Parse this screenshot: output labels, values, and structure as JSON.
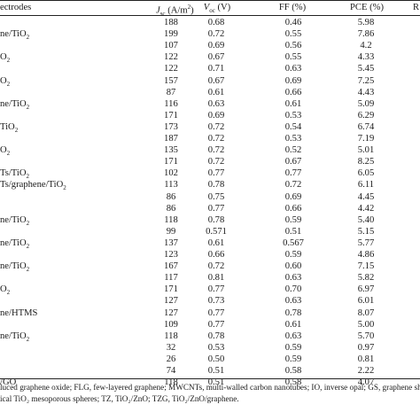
{
  "header": {
    "electrodes": "ectrodes",
    "jsc": "J",
    "jsc_sub": "sc",
    "jsc_unit": " (A/m",
    "jsc_sup": "2",
    "jsc_end": ")",
    "voc": "V",
    "voc_sub": "oc",
    "voc_unit": " (V)",
    "ff": "FF (%)",
    "pce": "PCE (%)",
    "ref": "R"
  },
  "rows": [
    {
      "label": "",
      "sub": "",
      "jsc": "188",
      "voc": "0.68",
      "ff": "0.46",
      "pce": "5.98"
    },
    {
      "label": "ne/TiO",
      "sub": "2",
      "jsc": "199",
      "voc": "0.72",
      "ff": "0.55",
      "pce": "7.86"
    },
    {
      "label": "",
      "sub": "",
      "jsc": "107",
      "voc": "0.69",
      "ff": "0.56",
      "pce": "4.2"
    },
    {
      "label": "O",
      "sub": "2",
      "jsc": "122",
      "voc": "0.67",
      "ff": "0.55",
      "pce": "4.33"
    },
    {
      "label": "",
      "sub": "",
      "jsc": "122",
      "voc": "0.71",
      "ff": "0.63",
      "pce": "5.45"
    },
    {
      "label": "O",
      "sub": "2",
      "jsc": "157",
      "voc": "0.67",
      "ff": "0.69",
      "pce": "7.25"
    },
    {
      "label": "",
      "sub": "",
      "jsc": "87",
      "voc": "0.61",
      "ff": "0.66",
      "pce": "4.43"
    },
    {
      "label": "ne/TiO",
      "sub": "2",
      "jsc": "116",
      "voc": "0.63",
      "ff": "0.61",
      "pce": "5.09"
    },
    {
      "label": "",
      "sub": "",
      "jsc": "171",
      "voc": "0.69",
      "ff": "0.53",
      "pce": "6.29"
    },
    {
      "label": "TiO",
      "sub": "2",
      "jsc": "173",
      "voc": "0.72",
      "ff": "0.54",
      "pce": "6.74"
    },
    {
      "label": "",
      "sub": "",
      "jsc": "187",
      "voc": "0.72",
      "ff": "0.53",
      "pce": "7.19"
    },
    {
      "label": "O",
      "sub": "2",
      "jsc": "135",
      "voc": "0.72",
      "ff": "0.52",
      "pce": "5.01"
    },
    {
      "label": "",
      "sub": "",
      "jsc": "171",
      "voc": "0.72",
      "ff": "0.67",
      "pce": "8.25"
    },
    {
      "label": "Ts/TiO",
      "sub": "2",
      "jsc": "102",
      "voc": "0.77",
      "ff": "0.77",
      "pce": "6.05"
    },
    {
      "label": "Ts/graphene/TiO",
      "sub": "2",
      "jsc": "113",
      "voc": "0.78",
      "ff": "0.72",
      "pce": "6.11"
    },
    {
      "label": "",
      "sub": "",
      "jsc": "86",
      "voc": "0.75",
      "ff": "0.69",
      "pce": "4.45"
    },
    {
      "label": "",
      "sub": "",
      "jsc": "86",
      "voc": "0.77",
      "ff": "0.66",
      "pce": "4.42"
    },
    {
      "label": "ne/TiO",
      "sub": "2",
      "jsc": "118",
      "voc": "0.78",
      "ff": "0.59",
      "pce": "5.40"
    },
    {
      "label": "",
      "sub": "",
      "jsc": "99",
      "voc": "0.571",
      "ff": "0.51",
      "pce": "5.15"
    },
    {
      "label": "ne/TiO",
      "sub": "2",
      "jsc": "137",
      "voc": "0.61",
      "ff": "0.567",
      "pce": "5.77"
    },
    {
      "label": "",
      "sub": "",
      "jsc": "123",
      "voc": "0.66",
      "ff": "0.59",
      "pce": "4.86"
    },
    {
      "label": "ne/TiO",
      "sub": "2",
      "jsc": "167",
      "voc": "0.72",
      "ff": "0.60",
      "pce": "7.15"
    },
    {
      "label": "",
      "sub": "",
      "jsc": "117",
      "voc": "0.81",
      "ff": "0.63",
      "pce": "5.82"
    },
    {
      "label": "O",
      "sub": "2",
      "jsc": "171",
      "voc": "0.77",
      "ff": "0.70",
      "pce": "6.97"
    },
    {
      "label": "",
      "sub": "",
      "jsc": "127",
      "voc": "0.73",
      "ff": "0.63",
      "pce": "6.01"
    },
    {
      "label": "ne/HTMS",
      "sub": "",
      "jsc": "127",
      "voc": "0.77",
      "ff": "0.78",
      "pce": "8.07"
    },
    {
      "label": "",
      "sub": "",
      "jsc": "109",
      "voc": "0.77",
      "ff": "0.61",
      "pce": "5.00"
    },
    {
      "label": "ne/TiO",
      "sub": "2",
      "jsc": "118",
      "voc": "0.78",
      "ff": "0.63",
      "pce": "5.70"
    },
    {
      "label": "",
      "sub": "",
      "jsc": "32",
      "voc": "0.53",
      "ff": "0.59",
      "pce": "0.97"
    },
    {
      "label": "",
      "sub": "",
      "jsc": "26",
      "voc": "0.50",
      "ff": "0.59",
      "pce": "0.81"
    },
    {
      "label": "",
      "sub": "",
      "jsc": "74",
      "voc": "0.51",
      "ff": "0.58",
      "pce": "2.22"
    },
    {
      "label": "/GO",
      "sub": "",
      "jsc": "118",
      "voc": "0.51",
      "ff": "0.58",
      "pce": "4.07"
    }
  ],
  "footnotes": [
    "luced graphene oxide; FLG, few-layered graphene; MWCNTs, multi-walled carbon nanotubes; IO, inverse opal; GS, graphene sheet;",
    "ical TiO₂ mesoporous spheres; TZ, TiO₂/ZnO; TZG, TiO₂/ZnO/graphene."
  ]
}
